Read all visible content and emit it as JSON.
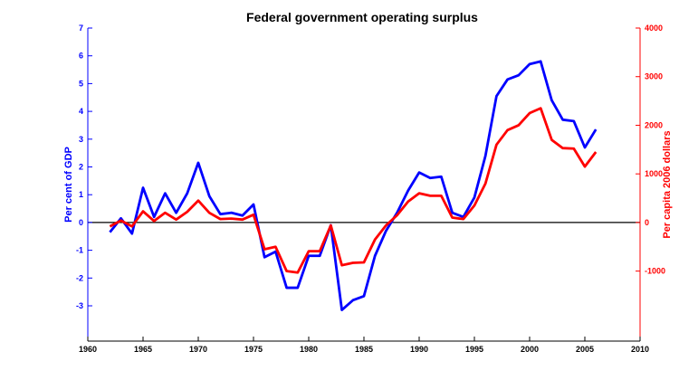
{
  "chart_data": {
    "type": "line",
    "title": "Federal government operating surplus",
    "xlabel": "",
    "ylabel_left": "Per cent of GDP",
    "ylabel_right": "Per capita 2006 dollars",
    "xlim": [
      1960,
      2010
    ],
    "ylim_left": [
      -4.27,
      7
    ],
    "ylim_right": [
      -2440,
      4000
    ],
    "x_ticks": [
      "1960",
      "1965",
      "1970",
      "1975",
      "1980",
      "1985",
      "1990",
      "1995",
      "2000",
      "2005",
      "2010"
    ],
    "y_ticks_left": [
      "-3",
      "-2",
      "-1",
      "0",
      "1",
      "2",
      "3",
      "4",
      "5",
      "6",
      "7"
    ],
    "y_ticks_right": [
      "-1000",
      "0",
      "1000",
      "2000",
      "3000",
      "4000"
    ],
    "grid": false,
    "colors": {
      "left_axis": "#0000ff",
      "right_axis": "#ff0000",
      "zero_line": "#000000"
    },
    "x": [
      1962,
      1963,
      1964,
      1965,
      1966,
      1967,
      1968,
      1969,
      1970,
      1971,
      1972,
      1973,
      1974,
      1975,
      1976,
      1977,
      1978,
      1979,
      1980,
      1981,
      1982,
      1983,
      1984,
      1985,
      1986,
      1987,
      1988,
      1989,
      1990,
      1991,
      1992,
      1993,
      1994,
      1995,
      1996,
      1997,
      1998,
      1999,
      2000,
      2001,
      2002,
      2003,
      2004,
      2005,
      2006
    ],
    "series": [
      {
        "axis": "left",
        "color": "#0000ff",
        "values": [
          -0.35,
          0.15,
          -0.4,
          1.25,
          0.2,
          1.05,
          0.35,
          1.05,
          2.15,
          0.95,
          0.3,
          0.35,
          0.25,
          0.65,
          -1.25,
          -1.05,
          -2.35,
          -2.35,
          -1.2,
          -1.2,
          -0.1,
          -3.15,
          -2.8,
          -2.65,
          -1.2,
          -0.3,
          0.35,
          1.15,
          1.8,
          1.6,
          1.65,
          0.35,
          0.2,
          0.9,
          2.4,
          4.55,
          5.15,
          5.3,
          5.7,
          5.8,
          4.4,
          3.7,
          3.65,
          2.7,
          3.35
        ]
      },
      {
        "axis": "right",
        "color": "#ff0000",
        "values": [
          -80,
          40,
          -80,
          230,
          30,
          200,
          60,
          220,
          450,
          200,
          70,
          80,
          60,
          160,
          -550,
          -500,
          -1000,
          -1030,
          -590,
          -590,
          -60,
          -880,
          -830,
          -820,
          -350,
          -60,
          150,
          430,
          600,
          550,
          550,
          100,
          70,
          350,
          800,
          1600,
          1900,
          2000,
          2250,
          2350,
          1700,
          1530,
          1520,
          1150,
          1450
        ]
      }
    ]
  }
}
